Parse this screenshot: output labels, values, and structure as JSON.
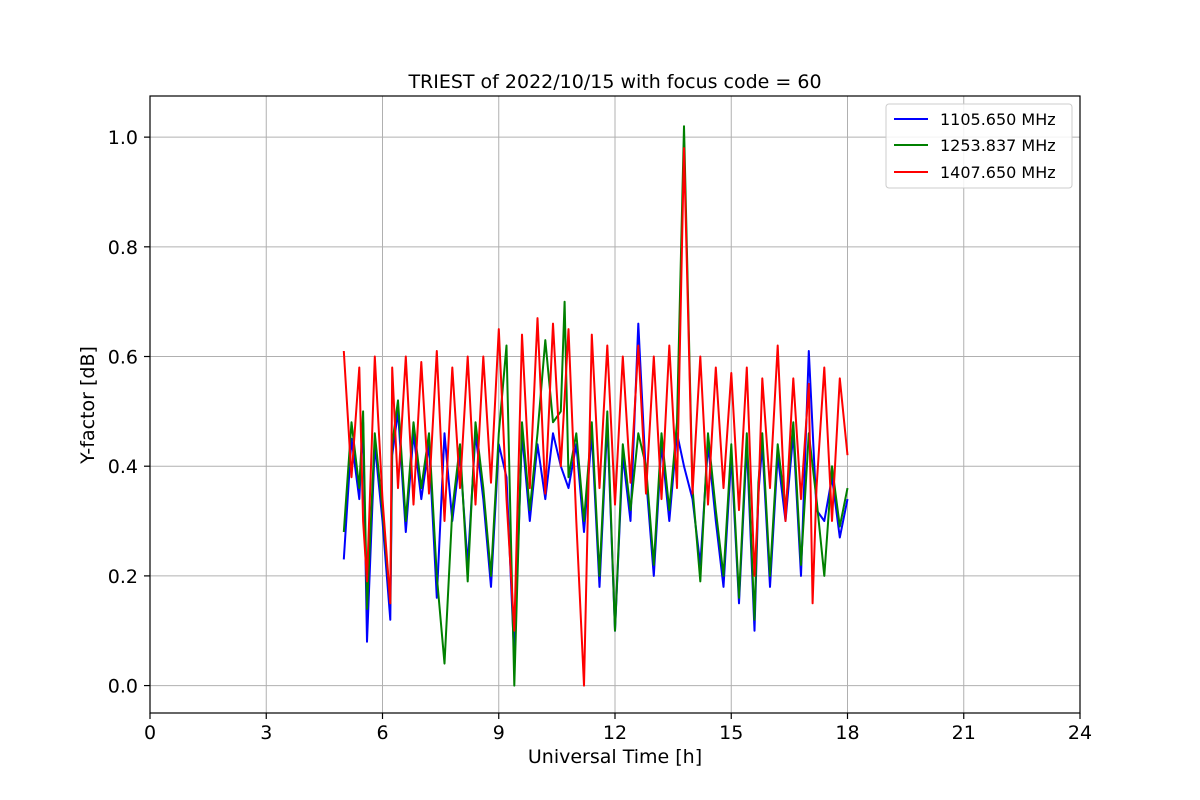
{
  "chart_data": {
    "type": "line",
    "title": "TRIEST of 2022/10/15 with focus code = 60",
    "xlabel": "Universal Time [h]",
    "ylabel": "Y-factor [dB]",
    "xlim": [
      0,
      24
    ],
    "ylim": [
      -0.05,
      1.075
    ],
    "xticks": [
      0,
      3,
      6,
      9,
      12,
      15,
      18,
      21,
      24
    ],
    "xtick_labels": [
      "0",
      "3",
      "6",
      "9",
      "12",
      "15",
      "18",
      "21",
      "24"
    ],
    "yticks": [
      0.0,
      0.2,
      0.4,
      0.6,
      0.8,
      1.0
    ],
    "ytick_labels": [
      "0.0",
      "0.2",
      "0.4",
      "0.6",
      "0.8",
      "1.0"
    ],
    "grid": true,
    "legend_position": "top-right",
    "series": [
      {
        "name": "1105.650 MHz",
        "color": "#0000ff",
        "x": [
          5.0,
          5.2,
          5.4,
          5.5,
          5.6,
          5.8,
          6.0,
          6.2,
          6.25,
          6.4,
          6.6,
          6.8,
          7.0,
          7.2,
          7.4,
          7.6,
          7.8,
          8.0,
          8.2,
          8.4,
          8.6,
          8.8,
          9.0,
          9.2,
          9.4,
          9.6,
          9.8,
          10.0,
          10.2,
          10.4,
          10.6,
          10.8,
          11.0,
          11.2,
          11.4,
          11.6,
          11.8,
          12.0,
          12.2,
          12.4,
          12.6,
          12.8,
          13.0,
          13.2,
          13.4,
          13.6,
          13.78,
          14.0,
          14.2,
          14.4,
          14.6,
          14.8,
          15.0,
          15.2,
          15.4,
          15.6,
          15.7,
          15.8,
          16.0,
          16.2,
          16.4,
          16.6,
          16.8,
          17.0,
          17.2,
          17.4,
          17.6,
          17.8,
          18.0
        ],
        "y": [
          0.23,
          0.45,
          0.34,
          0.48,
          0.08,
          0.44,
          0.3,
          0.12,
          0.42,
          0.5,
          0.28,
          0.46,
          0.34,
          0.44,
          0.16,
          0.46,
          0.3,
          0.42,
          0.22,
          0.46,
          0.34,
          0.18,
          0.44,
          0.38,
          0.05,
          0.46,
          0.3,
          0.44,
          0.34,
          0.46,
          0.4,
          0.36,
          0.44,
          0.28,
          0.46,
          0.18,
          0.48,
          0.1,
          0.42,
          0.3,
          0.66,
          0.38,
          0.2,
          0.44,
          0.3,
          0.46,
          0.4,
          0.34,
          0.22,
          0.44,
          0.3,
          0.18,
          0.42,
          0.15,
          0.44,
          0.1,
          0.35,
          0.44,
          0.18,
          0.42,
          0.3,
          0.46,
          0.2,
          0.61,
          0.32,
          0.3,
          0.38,
          0.27,
          0.34
        ]
      },
      {
        "name": "1253.837 MHz",
        "color": "#008000",
        "x": [
          5.0,
          5.2,
          5.4,
          5.5,
          5.6,
          5.8,
          6.0,
          6.2,
          6.25,
          6.4,
          6.6,
          6.8,
          7.0,
          7.2,
          7.4,
          7.6,
          7.8,
          8.0,
          8.2,
          8.4,
          8.6,
          8.8,
          9.0,
          9.2,
          9.4,
          9.6,
          9.8,
          10.0,
          10.2,
          10.4,
          10.6,
          10.7,
          10.8,
          11.0,
          11.2,
          11.4,
          11.6,
          11.8,
          12.0,
          12.2,
          12.4,
          12.6,
          12.8,
          13.0,
          13.2,
          13.4,
          13.6,
          13.78,
          14.0,
          14.2,
          14.4,
          14.6,
          14.8,
          15.0,
          15.2,
          15.4,
          15.6,
          15.7,
          15.8,
          16.0,
          16.2,
          16.4,
          16.6,
          16.8,
          17.0,
          17.2,
          17.4,
          17.6,
          17.8,
          18.0
        ],
        "y": [
          0.28,
          0.48,
          0.36,
          0.5,
          0.14,
          0.46,
          0.32,
          0.15,
          0.44,
          0.52,
          0.3,
          0.48,
          0.36,
          0.46,
          0.2,
          0.04,
          0.32,
          0.44,
          0.19,
          0.48,
          0.36,
          0.2,
          0.46,
          0.62,
          0.0,
          0.48,
          0.32,
          0.46,
          0.63,
          0.48,
          0.5,
          0.7,
          0.38,
          0.46,
          0.3,
          0.48,
          0.2,
          0.5,
          0.1,
          0.44,
          0.32,
          0.46,
          0.4,
          0.22,
          0.46,
          0.32,
          0.48,
          1.02,
          0.36,
          0.19,
          0.46,
          0.32,
          0.2,
          0.44,
          0.16,
          0.46,
          0.12,
          0.37,
          0.46,
          0.2,
          0.44,
          0.32,
          0.48,
          0.22,
          0.46,
          0.34,
          0.2,
          0.4,
          0.29,
          0.36
        ]
      },
      {
        "name": "1407.650 MHz",
        "color": "#ff0000",
        "x": [
          5.0,
          5.2,
          5.4,
          5.5,
          5.6,
          5.8,
          6.0,
          6.2,
          6.25,
          6.4,
          6.6,
          6.8,
          7.0,
          7.2,
          7.4,
          7.6,
          7.8,
          8.0,
          8.2,
          8.4,
          8.6,
          8.8,
          9.0,
          9.2,
          9.4,
          9.6,
          9.8,
          10.0,
          10.2,
          10.4,
          10.6,
          10.8,
          11.0,
          11.2,
          11.4,
          11.6,
          11.8,
          12.0,
          12.2,
          12.4,
          12.6,
          12.8,
          13.0,
          13.2,
          13.4,
          13.6,
          13.78,
          14.0,
          14.2,
          14.4,
          14.6,
          14.8,
          15.0,
          15.2,
          15.4,
          15.6,
          15.7,
          15.8,
          16.0,
          16.2,
          16.4,
          16.6,
          16.8,
          17.0,
          17.1,
          17.2,
          17.4,
          17.6,
          17.8,
          18.0
        ],
        "y": [
          0.61,
          0.38,
          0.58,
          0.3,
          0.19,
          0.6,
          0.34,
          0.15,
          0.58,
          0.36,
          0.6,
          0.33,
          0.59,
          0.35,
          0.61,
          0.3,
          0.58,
          0.36,
          0.6,
          0.33,
          0.6,
          0.37,
          0.65,
          0.34,
          0.1,
          0.64,
          0.36,
          0.67,
          0.35,
          0.66,
          0.4,
          0.65,
          0.3,
          0.0,
          0.64,
          0.36,
          0.62,
          0.33,
          0.6,
          0.37,
          0.62,
          0.35,
          0.6,
          0.34,
          0.62,
          0.36,
          0.98,
          0.35,
          0.6,
          0.33,
          0.58,
          0.36,
          0.57,
          0.32,
          0.58,
          0.2,
          0.34,
          0.56,
          0.36,
          0.62,
          0.3,
          0.56,
          0.34,
          0.55,
          0.15,
          0.36,
          0.58,
          0.3,
          0.56,
          0.42
        ]
      }
    ]
  }
}
